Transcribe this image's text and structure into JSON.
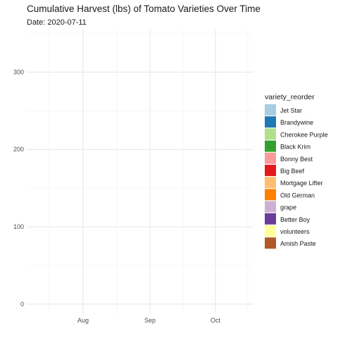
{
  "chart_data": {
    "type": "line",
    "title": "Cumulative Harvest (lbs) of Tomato Varieties Over Time",
    "subtitle": "Date: 2020-07-11",
    "xlabel": "",
    "ylabel": "",
    "x_ticks": [
      "Aug",
      "Sep",
      "Oct"
    ],
    "y_ticks": [
      0,
      100,
      200,
      300
    ],
    "ylim": [
      -12,
      355
    ],
    "grid": true,
    "legend": {
      "title": "variety_reorder",
      "placement": "right",
      "entries": [
        {
          "name": "Jet Star",
          "color": "#a6cee3"
        },
        {
          "name": "Brandywine",
          "color": "#1f78b4"
        },
        {
          "name": "Cherokee Purple",
          "color": "#b2df8a"
        },
        {
          "name": "Black Krim",
          "color": "#33a02c"
        },
        {
          "name": "Bonny Best",
          "color": "#fb9a99"
        },
        {
          "name": "Big Beef",
          "color": "#e31a1c"
        },
        {
          "name": "Mortgage Lifter",
          "color": "#fdbf6f"
        },
        {
          "name": "Old German",
          "color": "#ff7f00"
        },
        {
          "name": "grape",
          "color": "#cab2d6"
        },
        {
          "name": "Better Boy",
          "color": "#6a3d9a"
        },
        {
          "name": "volunteers",
          "color": "#ffff99"
        },
        {
          "name": "Amish Paste",
          "color": "#b15928"
        }
      ]
    },
    "series": []
  }
}
